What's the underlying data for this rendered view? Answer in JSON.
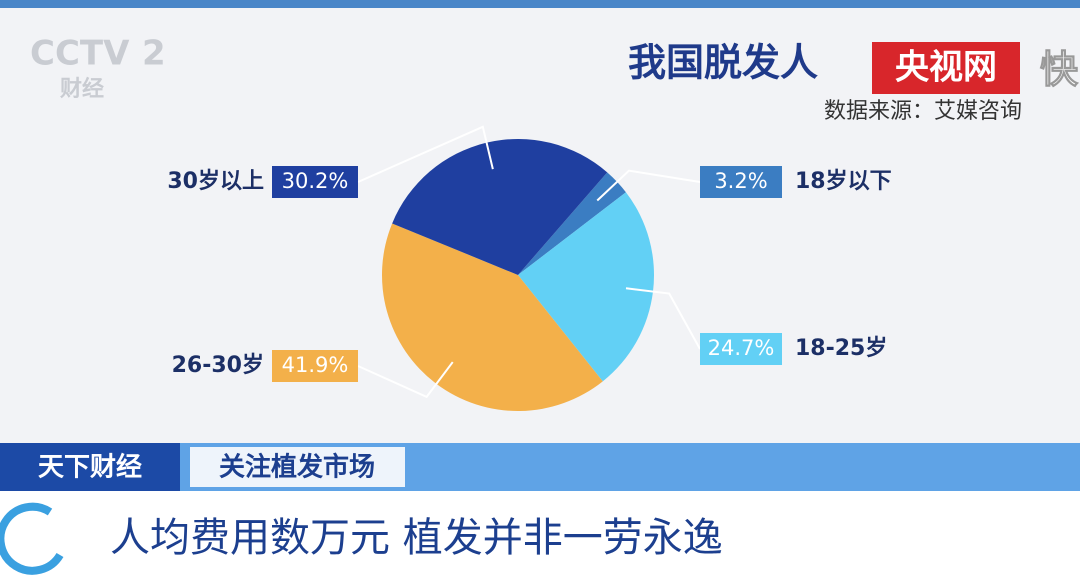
{
  "chart_data": {
    "type": "pie",
    "title": "我国脱发人",
    "subtitle": "数据来源：艾媒咨询",
    "categories": [
      "18岁以下",
      "18-25岁",
      "26-30岁",
      "30岁以上"
    ],
    "values": [
      3.2,
      24.7,
      41.9,
      30.2
    ],
    "value_labels": [
      "3.2%",
      "24.7%",
      "41.9%",
      "30.2%"
    ],
    "colors": [
      "#3b7dc2",
      "#62d0f5",
      "#f3b04a",
      "#1f3fa0"
    ]
  },
  "overlay": {
    "logo": "CCTV",
    "logo_number": "2",
    "logo_channel": "财经",
    "watermark": "央视网",
    "watermark_side": "快",
    "program": "天下财经",
    "topic": "关注植发市场",
    "headline": "人均费用数万元 植发并非一劳永逸"
  }
}
